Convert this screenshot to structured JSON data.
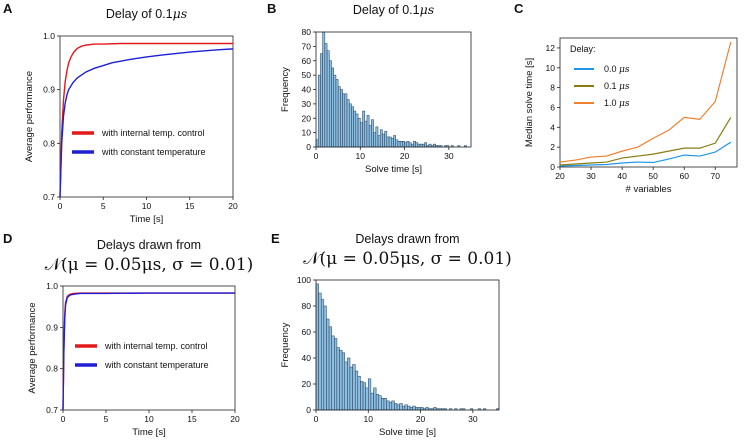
{
  "chart_data": [
    {
      "panel": "A",
      "type": "line",
      "title": "Delay of  0.1",
      "title_unit": "μs",
      "xlabel": "Time [s]",
      "ylabel": "Average performance",
      "xlim": [
        0,
        20
      ],
      "ylim": [
        0.7,
        1.0
      ],
      "xticks": [
        0,
        5,
        10,
        15,
        20
      ],
      "yticks": [
        0.7,
        0.8,
        0.9,
        1.0
      ],
      "ytick_labels": [
        "0.7",
        "0.8",
        "0.9",
        "1.0"
      ],
      "legend_position": "lower-right",
      "series": [
        {
          "name": "with internal temp. control",
          "color": "#e31a1c",
          "x": [
            0,
            0.2,
            0.4,
            0.6,
            0.8,
            1,
            1.3,
            1.6,
            2,
            2.5,
            3,
            4,
            5,
            7,
            10,
            15,
            20
          ],
          "y": [
            0.7,
            0.82,
            0.88,
            0.915,
            0.935,
            0.95,
            0.962,
            0.97,
            0.977,
            0.981,
            0.983,
            0.985,
            0.985,
            0.986,
            0.986,
            0.986,
            0.986
          ]
        },
        {
          "name": "with constant temperature",
          "color": "#1f1fd6",
          "x": [
            0,
            0.2,
            0.4,
            0.6,
            0.8,
            1,
            1.5,
            2,
            3,
            4,
            5,
            6,
            8,
            10,
            12,
            15,
            18,
            20
          ],
          "y": [
            0.7,
            0.8,
            0.85,
            0.875,
            0.89,
            0.9,
            0.913,
            0.922,
            0.933,
            0.94,
            0.945,
            0.95,
            0.956,
            0.961,
            0.965,
            0.97,
            0.974,
            0.976
          ]
        }
      ]
    },
    {
      "panel": "B",
      "type": "bar",
      "title": "Delay of  0.1",
      "title_unit": "μs",
      "xlabel": "Solve time [s]",
      "ylabel": "Frequency",
      "xlim": [
        0,
        35
      ],
      "ylim": [
        0,
        80
      ],
      "xticks": [
        0,
        10,
        20,
        30
      ],
      "yticks": [
        0,
        10,
        20,
        30,
        40,
        50,
        60,
        70,
        80
      ],
      "bin_width": 0.5,
      "bar_color": "#8fbfe0",
      "values": [
        5,
        50,
        65,
        80,
        72,
        67,
        60,
        55,
        50,
        47,
        42,
        40,
        37,
        37,
        33,
        30,
        28,
        25,
        23,
        20,
        17,
        25,
        18,
        22,
        15,
        19,
        10,
        14,
        8,
        12,
        9,
        11,
        7,
        7,
        6,
        8,
        5,
        4,
        4,
        4,
        3,
        4,
        3,
        2,
        4,
        3,
        2,
        2,
        2,
        3,
        1,
        2,
        1,
        2,
        1,
        1,
        1,
        0,
        1,
        1,
        0,
        1,
        0,
        0,
        1,
        0,
        0,
        1
      ]
    },
    {
      "panel": "C",
      "type": "line",
      "title": "",
      "xlabel": "# variables",
      "ylabel": "Median solve time [s]",
      "xlim": [
        20,
        77
      ],
      "ylim": [
        0,
        13
      ],
      "xticks": [
        20,
        30,
        40,
        50,
        60,
        70
      ],
      "yticks": [
        0,
        2,
        4,
        6,
        8,
        10,
        12
      ],
      "legend_title": "Delay:",
      "legend_position": "top-left",
      "series": [
        {
          "name": "0.0",
          "unit": "μs",
          "color": "#2196e8",
          "x": [
            20,
            25,
            30,
            35,
            40,
            45,
            50,
            55,
            60,
            65,
            70,
            75
          ],
          "y": [
            0.1,
            0.15,
            0.2,
            0.25,
            0.4,
            0.5,
            0.45,
            0.8,
            1.2,
            1.1,
            1.5,
            2.5
          ]
        },
        {
          "name": "0.1",
          "unit": "μs",
          "color": "#8a7d10",
          "x": [
            20,
            25,
            30,
            35,
            40,
            45,
            50,
            55,
            60,
            65,
            70,
            75
          ],
          "y": [
            0.2,
            0.3,
            0.4,
            0.5,
            0.9,
            1.1,
            1.3,
            1.6,
            1.9,
            1.9,
            2.4,
            5.0
          ]
        },
        {
          "name": "1.0",
          "unit": "μs",
          "color": "#f07f2e",
          "x": [
            20,
            25,
            30,
            35,
            40,
            45,
            50,
            55,
            60,
            65,
            70,
            75
          ],
          "y": [
            0.5,
            0.7,
            1.0,
            1.1,
            1.6,
            2.0,
            2.9,
            3.7,
            5.0,
            4.8,
            6.6,
            12.6
          ]
        }
      ]
    },
    {
      "panel": "D",
      "type": "line",
      "title": "Delays drawn from",
      "title_math": "𝒩(μ = 0.05μs, σ = 0.01)",
      "xlabel": "Time [s]",
      "ylabel": "Average performance",
      "xlim": [
        0,
        20
      ],
      "ylim": [
        0.7,
        1.0
      ],
      "xticks": [
        0,
        5,
        10,
        15,
        20
      ],
      "yticks": [
        0.7,
        0.8,
        0.9,
        1.0
      ],
      "ytick_labels": [
        "0.7",
        "0.8",
        "0.9",
        "1.0"
      ],
      "legend_position": "lower-right",
      "series": [
        {
          "name": "with internal temp. control",
          "color": "#e31a1c",
          "x": [
            0,
            0.1,
            0.2,
            0.3,
            0.5,
            0.8,
            1.2,
            2,
            5,
            10,
            15,
            20
          ],
          "y": [
            0.7,
            0.85,
            0.93,
            0.96,
            0.975,
            0.98,
            0.982,
            0.983,
            0.983,
            0.983,
            0.983,
            0.983
          ]
        },
        {
          "name": "with constant temperature",
          "color": "#1f1fd6",
          "x": [
            0,
            0.1,
            0.2,
            0.3,
            0.5,
            0.8,
            1.2,
            2,
            5,
            10,
            15,
            20
          ],
          "y": [
            0.7,
            0.84,
            0.92,
            0.955,
            0.972,
            0.978,
            0.98,
            0.982,
            0.982,
            0.983,
            0.983,
            0.983
          ]
        }
      ]
    },
    {
      "panel": "E",
      "type": "bar",
      "title": "Delays drawn from",
      "title_math": "𝒩(μ = 0.05μs, σ = 0.01)",
      "xlabel": "Solve time [s]",
      "ylabel": "Frequency",
      "xlim": [
        0,
        35
      ],
      "ylim": [
        0,
        100
      ],
      "xticks": [
        0,
        10,
        20,
        30
      ],
      "yticks": [
        0,
        20,
        40,
        60,
        80,
        100
      ],
      "bin_width": 0.5,
      "bar_color": "#8fbfe0",
      "values": [
        97,
        90,
        85,
        80,
        70,
        64,
        57,
        55,
        48,
        46,
        44,
        37,
        40,
        33,
        35,
        30,
        26,
        22,
        21,
        17,
        24,
        13,
        17,
        12,
        11,
        9,
        9,
        7,
        6,
        7,
        5,
        4,
        5,
        3,
        4,
        3,
        2,
        3,
        2,
        2,
        2,
        1,
        2,
        1,
        1,
        2,
        1,
        1,
        1,
        1,
        0,
        1,
        0,
        1,
        0,
        1,
        1,
        0,
        0,
        1,
        0,
        0,
        1,
        0,
        1,
        0,
        0,
        0,
        0,
        1
      ]
    }
  ],
  "labels": {
    "A": "A",
    "B": "B",
    "C": "C",
    "D": "D",
    "E": "E"
  }
}
